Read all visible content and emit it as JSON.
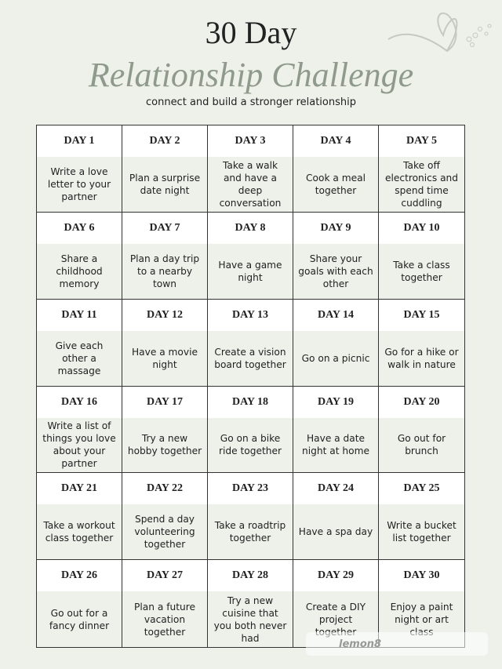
{
  "header": {
    "title_line1": "30 Day",
    "title_line2": "Relationship Challenge",
    "subtitle": "connect and build a stronger relationship"
  },
  "days": [
    {
      "label": "DAY 1",
      "task": "Write a love letter to your partner"
    },
    {
      "label": "DAY 2",
      "task": "Plan a surprise date night"
    },
    {
      "label": "DAY 3",
      "task": "Take a walk and have a deep conversation"
    },
    {
      "label": "DAY 4",
      "task": "Cook a meal together"
    },
    {
      "label": "DAY 5",
      "task": "Take off electronics and spend time cuddling"
    },
    {
      "label": "DAY 6",
      "task": "Share a childhood memory"
    },
    {
      "label": "DAY 7",
      "task": "Plan a day trip to a nearby town"
    },
    {
      "label": "DAY 8",
      "task": "Have a game night"
    },
    {
      "label": "DAY 9",
      "task": "Share your goals with each other"
    },
    {
      "label": "DAY 10",
      "task": "Take a class together"
    },
    {
      "label": "DAY 11",
      "task": "Give each other a massage"
    },
    {
      "label": "DAY 12",
      "task": "Have a movie night"
    },
    {
      "label": "DAY 13",
      "task": "Create a vision board together"
    },
    {
      "label": "DAY 14",
      "task": "Go on a picnic"
    },
    {
      "label": "DAY 15",
      "task": "Go for a hike or walk in nature"
    },
    {
      "label": "DAY 16",
      "task": "Write a list of things you love about your partner"
    },
    {
      "label": "DAY 17",
      "task": "Try a new hobby together"
    },
    {
      "label": "DAY 18",
      "task": "Go on a bike ride together"
    },
    {
      "label": "DAY 19",
      "task": "Have a date night at home"
    },
    {
      "label": "DAY 20",
      "task": "Go out for brunch"
    },
    {
      "label": "DAY 21",
      "task": "Take a workout class together"
    },
    {
      "label": "DAY 22",
      "task": "Spend a day volunteering together"
    },
    {
      "label": "DAY 23",
      "task": "Take a roadtrip together"
    },
    {
      "label": "DAY 24",
      "task": "Have a spa day"
    },
    {
      "label": "DAY 25",
      "task": "Write a bucket list together"
    },
    {
      "label": "DAY 26",
      "task": "Go out for a fancy dinner"
    },
    {
      "label": "DAY 27",
      "task": "Plan a future vacation together"
    },
    {
      "label": "DAY 28",
      "task": "Try a new cuisine that you both never had"
    },
    {
      "label": "DAY 29",
      "task": "Create a DIY project together"
    },
    {
      "label": "DAY 30",
      "task": "Enjoy a paint night or art class"
    }
  ],
  "watermark": {
    "logo": "lemon8"
  },
  "colors": {
    "background": "#eef1ea",
    "accent": "#8f9a8c",
    "border": "#333333"
  }
}
